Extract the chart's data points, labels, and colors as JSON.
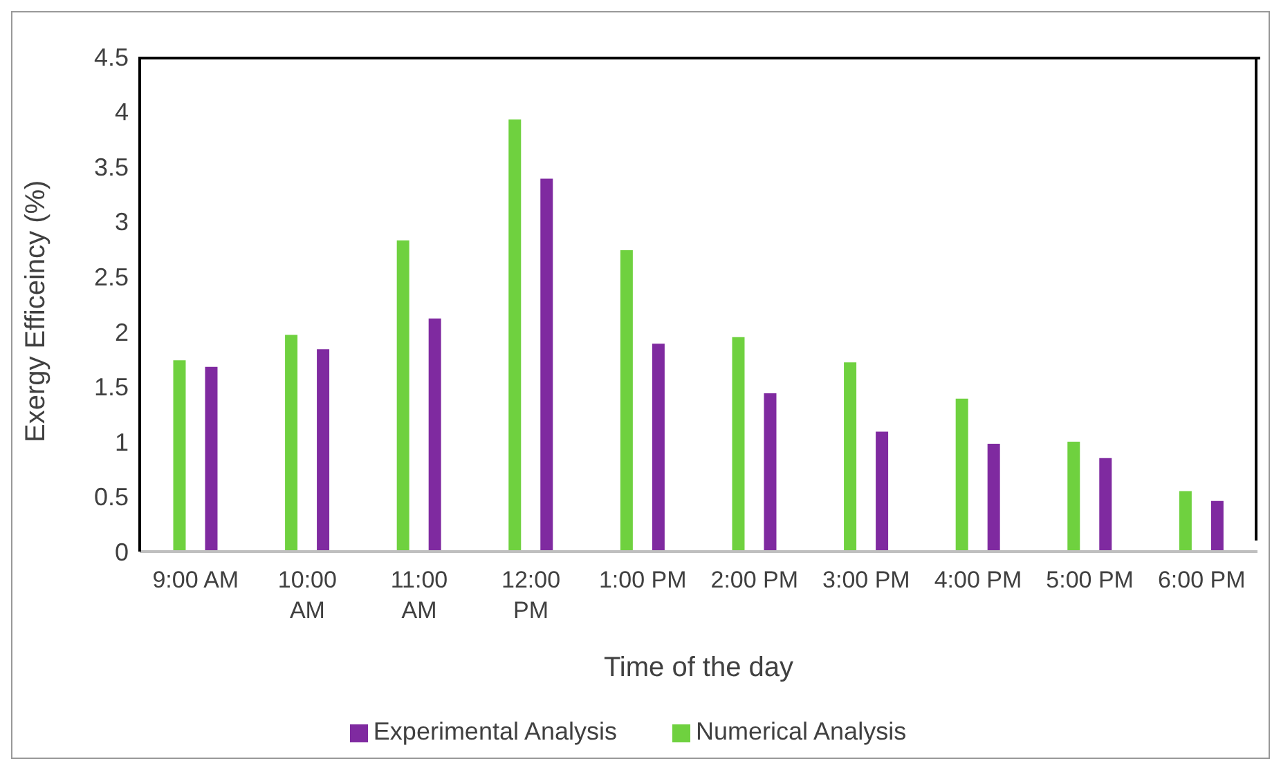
{
  "chart_data": {
    "type": "bar",
    "xlabel": "Time of the day",
    "ylabel": "Exergy Efficeincy (%)",
    "categories": [
      "9:00 AM",
      "10:00 AM",
      "11:00 AM",
      "12:00 PM",
      "1:00 PM",
      "2:00 PM",
      "3:00 PM",
      "4:00 PM",
      "5:00 PM",
      "6:00 PM"
    ],
    "series": [
      {
        "name": "Numerical Analysis",
        "color": "#6fd13f",
        "values": [
          1.74,
          1.97,
          2.83,
          3.93,
          2.74,
          1.95,
          1.72,
          1.39,
          1.0,
          0.55
        ]
      },
      {
        "name": "Experimental Analysis",
        "color": "#7f2aa0",
        "values": [
          1.68,
          1.84,
          2.12,
          3.39,
          1.89,
          1.44,
          1.09,
          0.98,
          0.85,
          0.46
        ]
      }
    ],
    "ylim": [
      0,
      4.5
    ],
    "yticks": [
      0,
      0.5,
      1,
      1.5,
      2,
      2.5,
      3,
      3.5,
      4,
      4.5
    ],
    "grid": false,
    "legend": "bottom"
  }
}
